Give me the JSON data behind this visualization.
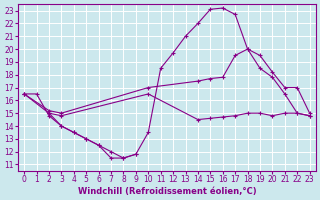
{
  "xlabel": "Windchill (Refroidissement éolien,°C)",
  "xlim": [
    -0.5,
    23.5
  ],
  "ylim": [
    10.5,
    23.5
  ],
  "xticks": [
    0,
    1,
    2,
    3,
    4,
    5,
    6,
    7,
    8,
    9,
    10,
    11,
    12,
    13,
    14,
    15,
    16,
    17,
    18,
    19,
    20,
    21,
    22,
    23
  ],
  "yticks": [
    11,
    12,
    13,
    14,
    15,
    16,
    17,
    18,
    19,
    20,
    21,
    22,
    23
  ],
  "bg_color": "#cce8ed",
  "line_color": "#880088",
  "grid_color": "#ffffff",
  "line1_x": [
    0,
    1,
    2,
    3,
    4,
    5,
    6,
    7,
    8,
    9,
    10,
    11,
    12,
    13,
    14,
    15,
    16,
    17,
    18,
    19,
    20,
    21,
    22,
    23
  ],
  "line1_y": [
    16.5,
    16.5,
    14.8,
    14.0,
    13.5,
    13.0,
    12.5,
    12.0,
    11.5,
    11.8,
    13.5,
    18.5,
    19.7,
    21.0,
    22.0,
    23.1,
    23.2,
    22.7,
    20.0,
    18.5,
    17.8,
    16.5,
    15.0,
    14.8
  ],
  "line2_x": [
    0,
    2,
    3,
    10,
    14,
    15,
    16,
    17,
    18,
    19,
    20,
    21,
    22,
    23
  ],
  "line2_y": [
    16.5,
    15.2,
    15.0,
    17.0,
    17.5,
    17.7,
    17.8,
    19.5,
    20.0,
    19.5,
    18.2,
    17.0,
    17.0,
    15.0
  ],
  "line3_x": [
    0,
    2,
    3,
    10,
    14,
    15,
    16,
    17,
    18,
    19,
    20,
    21,
    22,
    23
  ],
  "line3_y": [
    16.5,
    15.0,
    14.8,
    16.5,
    14.5,
    14.6,
    14.7,
    14.8,
    15.0,
    15.0,
    14.8,
    15.0,
    15.0,
    14.8
  ],
  "line4_x": [
    2,
    3,
    4,
    5,
    6,
    7,
    8,
    9
  ],
  "line4_y": [
    15.0,
    14.0,
    13.5,
    13.0,
    12.5,
    11.5,
    11.5,
    11.8
  ],
  "tickfont_size": 5.5,
  "labelfont_size": 6.0
}
